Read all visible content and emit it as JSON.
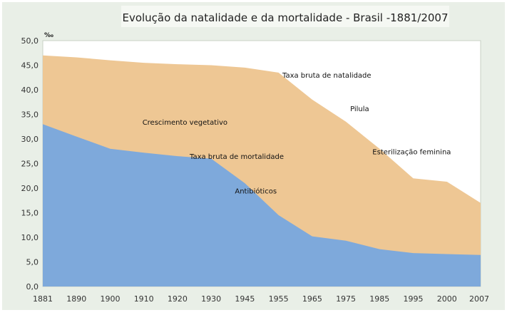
{
  "chart_data": {
    "type": "area",
    "title": "Evolução da natalidade e da mortalidade - Brasil -1881/2007",
    "ylabel": "‰",
    "xlabel": "",
    "ylim": [
      0,
      50
    ],
    "yticks": [
      "0,0",
      "5,0",
      "10,0",
      "15,0",
      "20,0",
      "25,0",
      "30,0",
      "35,0",
      "40,0",
      "45,0",
      "50,0"
    ],
    "categories": [
      "1881",
      "1890",
      "1900",
      "1910",
      "1920",
      "1930",
      "1945",
      "1955",
      "1965",
      "1975",
      "1985",
      "1995",
      "2000",
      "2007"
    ],
    "series": [
      {
        "name": "Taxa bruta de natalidade",
        "color": "#eec794",
        "values": [
          47.0,
          46.6,
          46.0,
          45.5,
          45.2,
          45.0,
          44.5,
          43.5,
          38.0,
          33.5,
          28.0,
          22.0,
          21.3,
          17.0
        ]
      },
      {
        "name": "Taxa bruta de mortalidade",
        "color": "#7ea9db",
        "values": [
          33.0,
          30.5,
          28.0,
          27.2,
          26.5,
          26.0,
          21.0,
          14.5,
          10.2,
          9.3,
          7.6,
          6.8,
          6.6,
          6.4
        ]
      }
    ],
    "annotations": [
      {
        "text": "Crescimento vegetativo",
        "x": "1910",
        "y": 33.5
      },
      {
        "text": "Antibióticos",
        "x": "1945",
        "y": 19.5
      },
      {
        "text": "Pilula",
        "x": "1975",
        "y": 36.2
      },
      {
        "text": "Esterilização feminina",
        "x": "1985",
        "y": 27.5
      }
    ],
    "grid": false,
    "background": "#e9efe7",
    "plot_background": "#ffffff"
  }
}
